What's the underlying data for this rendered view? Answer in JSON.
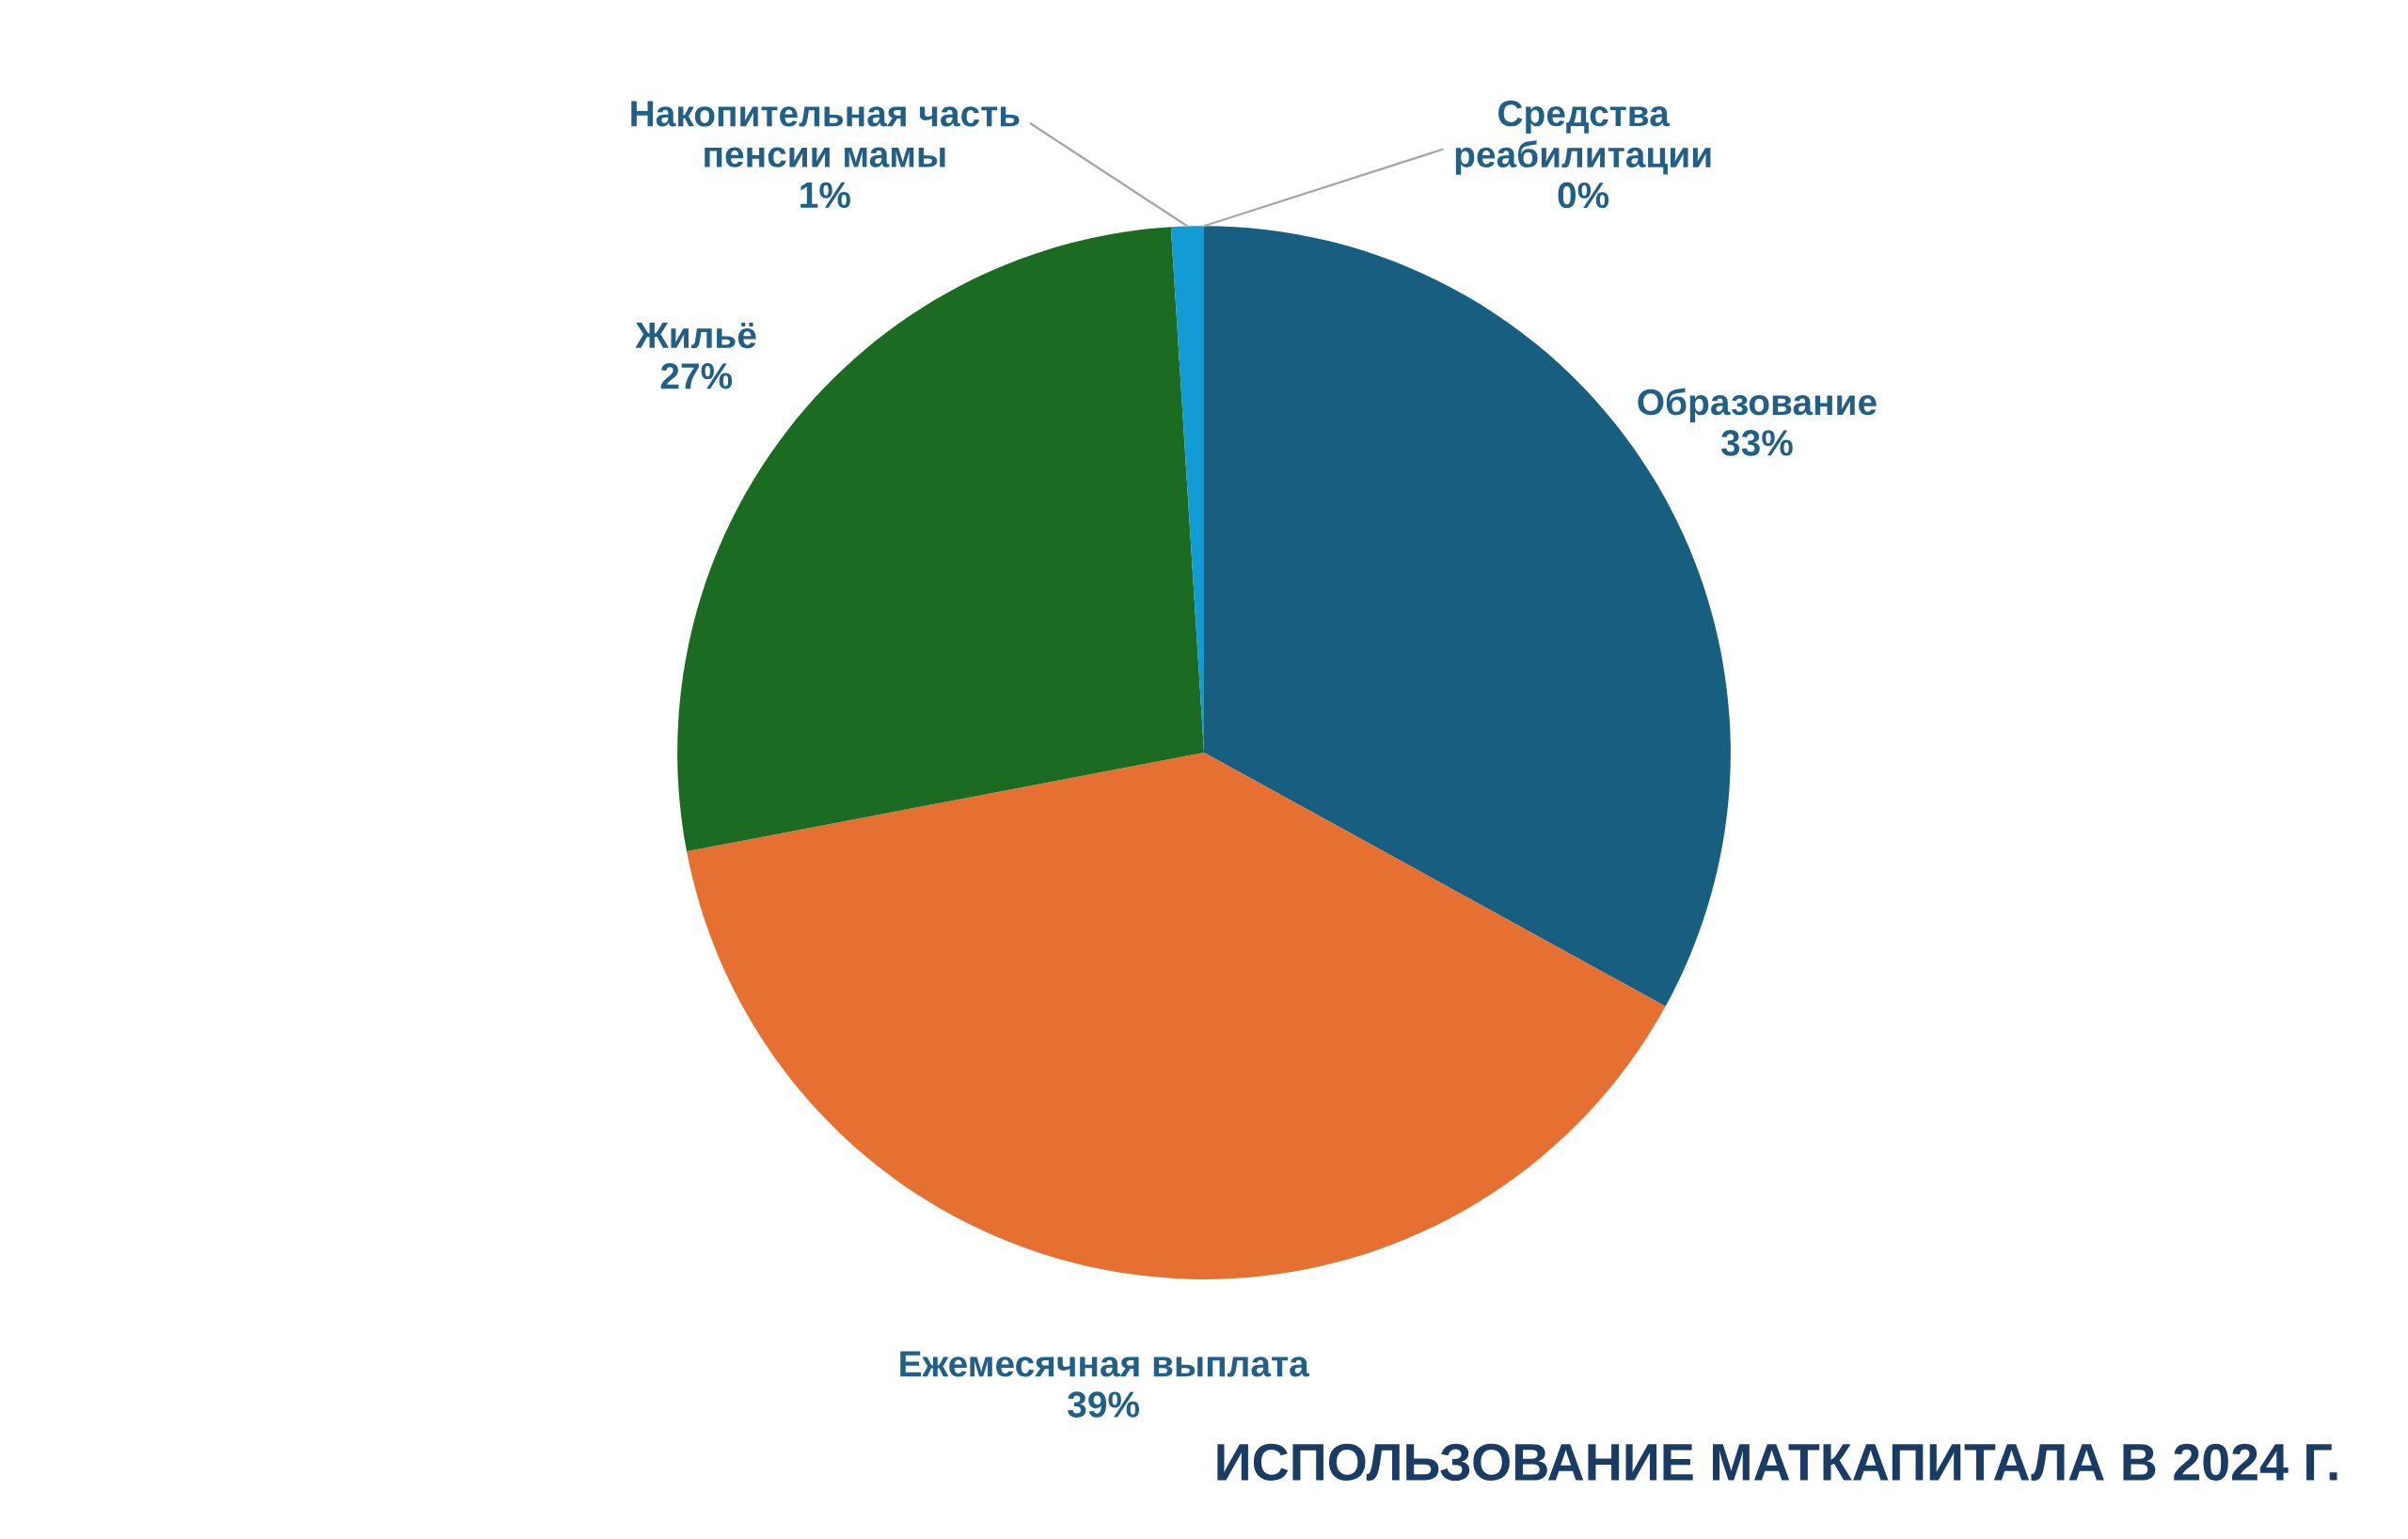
{
  "chart_data": {
    "type": "pie",
    "title": "ИСПОЛЬЗОВАНИЕ МАТКАПИТАЛА В 2024 Г.",
    "categories": [
      "Образование",
      "Ежемесячная выплата",
      "Жильё",
      "Накопительная часть\nпенсии мамы",
      "Средства\nреабилитации"
    ],
    "values": [
      33,
      39,
      27,
      1,
      0
    ],
    "colors": [
      "#175e80",
      "#e57031",
      "#1b6b22",
      "#139bd6",
      "#8c8c8c"
    ],
    "value_labels": [
      "33%",
      "39%",
      "27%",
      "1%",
      "0%"
    ],
    "legend": false
  }
}
